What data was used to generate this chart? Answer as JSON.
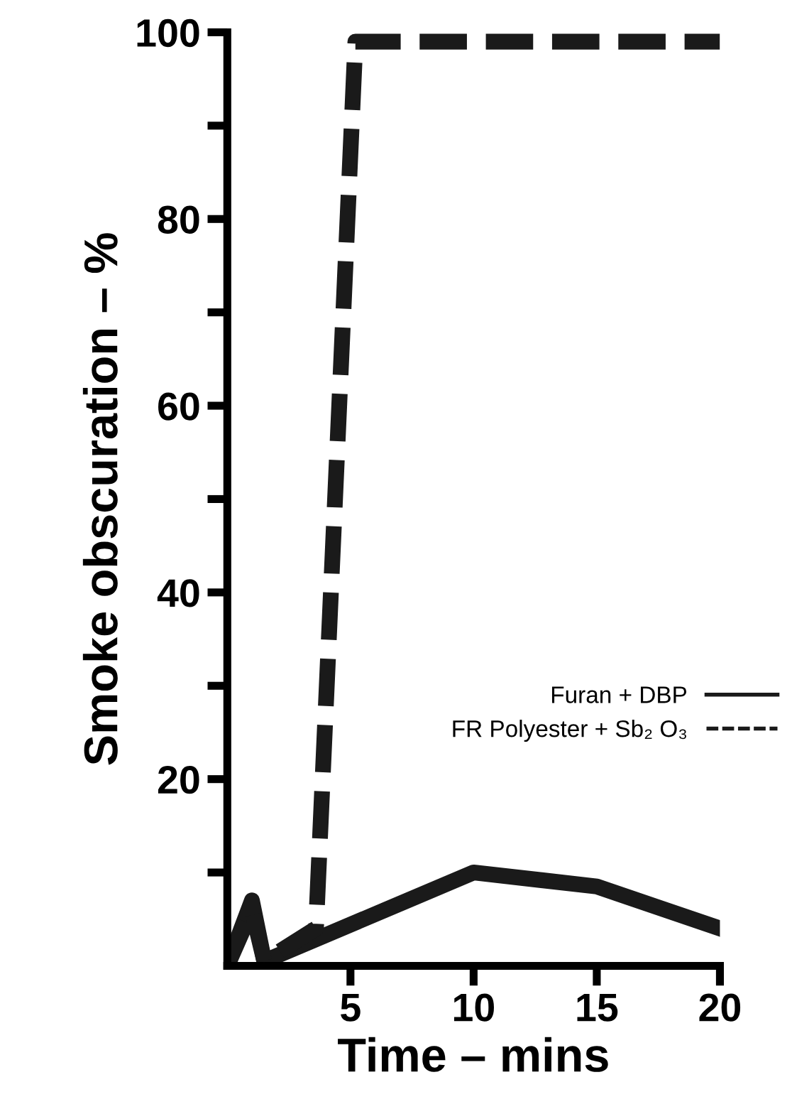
{
  "chart_data": {
    "type": "line",
    "xlabel": "Time – mins",
    "ylabel": "Smoke obscuration – %",
    "xlim": [
      0,
      20
    ],
    "xticks": [
      5,
      10,
      15,
      20
    ],
    "ylim": [
      0,
      100
    ],
    "yticks": [
      {
        "value": 10,
        "label": null
      },
      20,
      {
        "value": 30,
        "label": null
      },
      40,
      {
        "value": 50,
        "label": null
      },
      60,
      {
        "value": 70,
        "label": null
      },
      80,
      {
        "value": 90,
        "label": null
      },
      100
    ],
    "series": [
      {
        "name": "Furan + DBP",
        "color": "#1a1a1a",
        "line_style": "solid",
        "x": [
          0,
          1,
          1.5,
          10,
          15,
          20
        ],
        "values": [
          0,
          7,
          0.5,
          10,
          8.5,
          4
        ]
      },
      {
        "name": "FR Polyester + Sb₂ O₃",
        "color": "#1a1a1a",
        "line_style": "dashed",
        "x": [
          0,
          1,
          1.5,
          3.6,
          5.2,
          20
        ],
        "values": [
          0,
          6,
          0.5,
          4,
          99,
          99
        ]
      }
    ],
    "legend": "right",
    "grid": false
  }
}
